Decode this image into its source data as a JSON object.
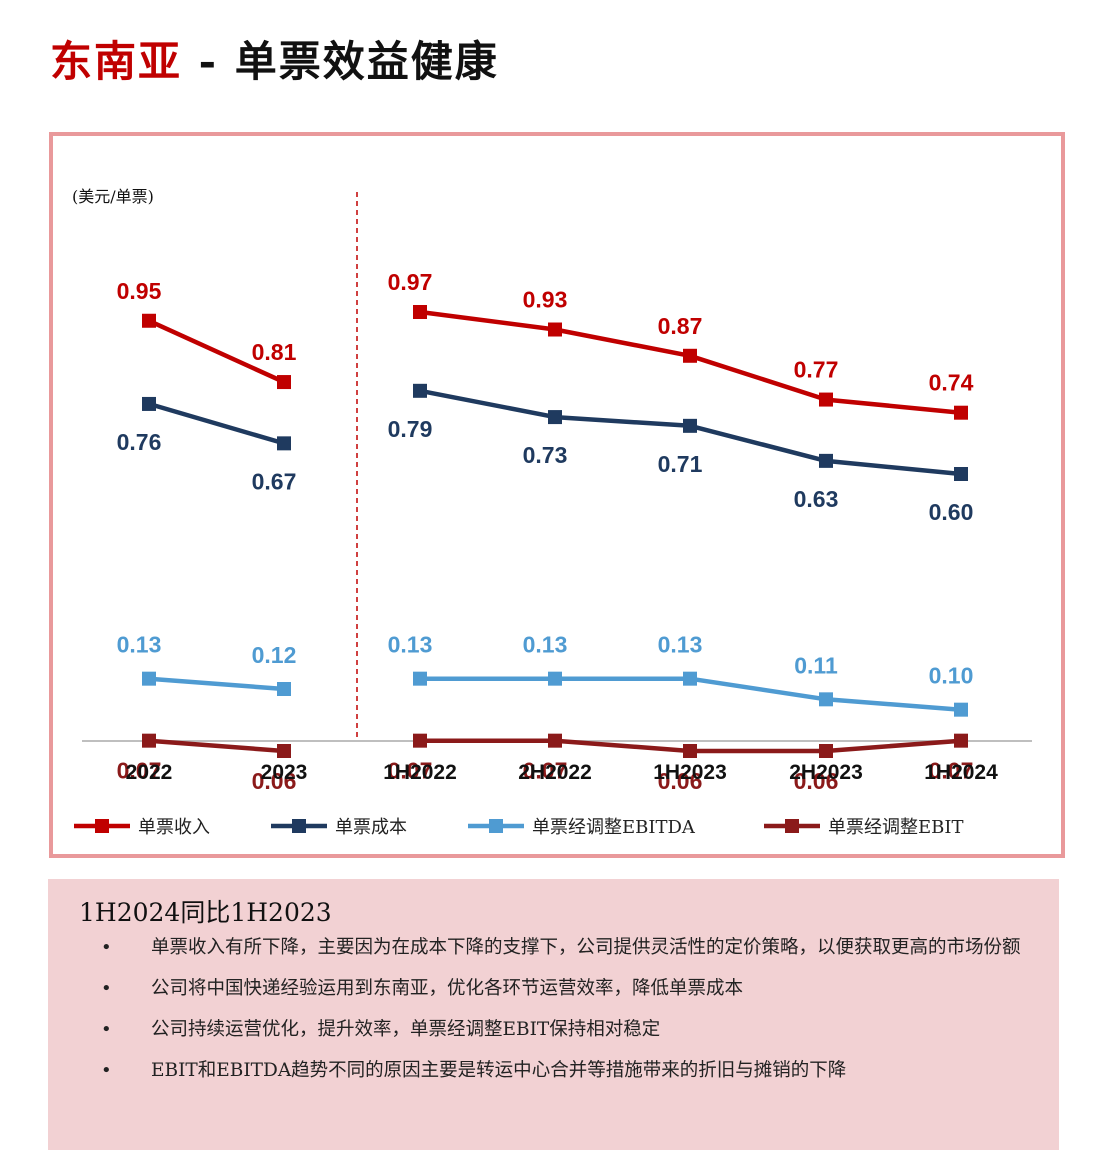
{
  "page": {
    "title_accent": "东南亚",
    "title_rest": " - 单票效益健康"
  },
  "chart_data": {
    "type": "line",
    "unit_label": "(美元/单票)",
    "groups": [
      {
        "name": "annual",
        "categories": [
          "2022",
          "2023"
        ]
      },
      {
        "name": "half-year",
        "categories": [
          "1H2022",
          "2H2022",
          "1H2023",
          "2H2023",
          "1H2024"
        ]
      }
    ],
    "categories": [
      "2022",
      "2023",
      "1H2022",
      "2H2022",
      "1H2023",
      "2H2023",
      "1H2024"
    ],
    "series": [
      {
        "name": "单票收入",
        "color": "#c00000",
        "labelColor": "#c00000",
        "values": [
          0.95,
          0.81,
          0.97,
          0.93,
          0.87,
          0.77,
          0.74
        ],
        "labels": [
          "0.95",
          "0.81",
          "0.97",
          "0.93",
          "0.87",
          "0.77",
          "0.74"
        ]
      },
      {
        "name": "单票成本",
        "color": "#1f3a5f",
        "labelColor": "#1f3a5f",
        "values": [
          0.76,
          0.67,
          0.79,
          0.73,
          0.71,
          0.63,
          0.6
        ],
        "labels": [
          "0.76",
          "0.67",
          "0.79",
          "0.73",
          "0.71",
          "0.63",
          "0.60"
        ]
      },
      {
        "name": "单票经调整EBITDA",
        "color": "#4f9bd2",
        "labelColor": "#4f9bd2",
        "values": [
          0.13,
          0.12,
          0.13,
          0.13,
          0.13,
          0.11,
          0.1
        ],
        "labels": [
          "0.13",
          "0.12",
          "0.13",
          "0.13",
          "0.13",
          "0.11",
          "0.10"
        ]
      },
      {
        "name": "单票经调整EBIT",
        "color": "#8b1a1a",
        "labelColor": "#8b1a1a",
        "values": [
          0.07,
          0.06,
          0.07,
          0.07,
          0.06,
          0.06,
          0.07
        ],
        "labels": [
          "0.07",
          "0.06",
          "0.07",
          "0.07",
          "0.06",
          "0.06",
          "0.07"
        ]
      }
    ],
    "ylim": [
      0,
      1.1
    ],
    "legend_position": "bottom",
    "divider": "dashed line between annual and half-year groups"
  },
  "summary": {
    "title": "1H2024同比1H2023",
    "bullet_symbol": "•",
    "bullets": [
      "单票收入有所下降，主要因为在成本下降的支撑下，公司提供灵活性的定价策略，以便获取更高的市场份额",
      "公司将中国快递经验运用到东南亚，优化各环节运营效率，降低单票成本",
      "公司持续运营优化，提升效率，单票经调整EBIT保持相对稳定",
      "EBIT和EBITDA趋势不同的原因主要是转运中心合并等措施带来的折旧与摊销的下降"
    ]
  }
}
